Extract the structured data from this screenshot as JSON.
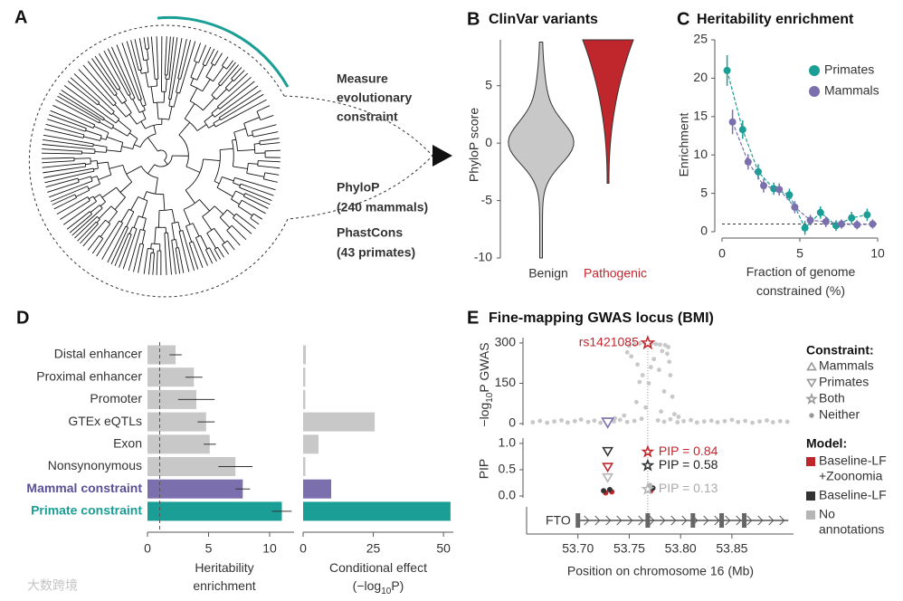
{
  "panel_a": {
    "letter": "A",
    "heading": [
      "Measure",
      "evolutionary",
      "constraint"
    ],
    "phylop": [
      "PhyloP",
      "(240 mammals)"
    ],
    "phastcons": [
      "PhastCons",
      "(43 primates)"
    ]
  },
  "watermark": "大数跨境",
  "chart_data": [
    {
      "panel": "B",
      "type": "violin",
      "title": "ClinVar variants",
      "ylabel": "PhyloP score",
      "categories": [
        "Benign",
        "Pathogenic"
      ],
      "colors": [
        "#c8c8c8",
        "#c0272d"
      ],
      "label_colors": [
        "#333333",
        "#c0272d"
      ],
      "min": [
        -10,
        -3.5
      ],
      "max": [
        8.8,
        9
      ],
      "ylim": [
        -10,
        9
      ],
      "yticks": [
        -10,
        -5,
        0,
        5
      ]
    },
    {
      "panel": "C",
      "type": "line",
      "title": "Heritability enrichment",
      "ylabel": "Enrichment",
      "xlabel": [
        [
          "Fraction of genome"
        ],
        [
          "constrained (%)"
        ]
      ],
      "x": [
        0.5,
        1.5,
        2.5,
        3.5,
        4.5,
        5.5,
        6.5,
        7.5,
        8.5,
        9.5
      ],
      "series": [
        {
          "name": "Primates",
          "color": "#1a9e95",
          "values": [
            21,
            13.3,
            7.8,
            5.6,
            4.8,
            0.5,
            2.5,
            0.8,
            1.8,
            2.2
          ],
          "errors": [
            2,
            1.2,
            1,
            0.8,
            0.8,
            0.9,
            0.8,
            0.7,
            0.8,
            0.8
          ]
        },
        {
          "name": "Mammals",
          "color": "#7b6fae",
          "values": [
            14.3,
            9.1,
            6.0,
            5.5,
            3.2,
            1.5,
            1.3,
            1.0,
            0.9,
            1.0
          ],
          "errors": [
            1.6,
            1,
            0.9,
            0.8,
            0.8,
            0.7,
            0.7,
            0.6,
            0.6,
            0.6
          ]
        }
      ],
      "xlim": [
        0,
        10
      ],
      "xticks": [
        0,
        5,
        10
      ],
      "ylim": [
        0,
        25
      ],
      "yticks": [
        0,
        5,
        10,
        15,
        20,
        25
      ],
      "reference": 1,
      "legend": "upper right"
    },
    {
      "panel": "D",
      "type": "hbar",
      "categories": [
        "Distal enhancer",
        "Proximal enhancer",
        "Promoter",
        "GTEx eQTLs",
        "Exon",
        "Nonsynonymous",
        "Mammal constraint",
        "Primate constraint"
      ],
      "colors": [
        "#c8c8c8",
        "#c8c8c8",
        "#c8c8c8",
        "#c8c8c8",
        "#c8c8c8",
        "#c8c8c8",
        "#7b6fae",
        "#1a9e95"
      ],
      "label_colors": [
        "#333333",
        "#333333",
        "#333333",
        "#333333",
        "#333333",
        "#333333",
        "#5b4f96",
        "#1a9e95"
      ],
      "values": [
        2.3,
        3.8,
        4.0,
        4.8,
        5.1,
        7.2,
        7.8,
        11.0
      ],
      "errors": [
        0.5,
        0.7,
        1.5,
        0.7,
        0.5,
        1.4,
        0.6,
        0.8
      ],
      "xlabel": [
        [
          "Heritability"
        ],
        [
          "enrichment"
        ]
      ],
      "xlim": [
        0,
        12
      ],
      "xticks": [
        0,
        5,
        10
      ],
      "reference": 1
    },
    {
      "type": "hbar",
      "values": [
        1,
        0.8,
        0.8,
        25.5,
        5.5,
        0.8,
        10,
        52.5
      ],
      "xlabel": [
        [
          "Conditional effect"
        ],
        [
          "(−log",
          "10",
          "P)"
        ]
      ],
      "xlim": [
        0,
        53.5
      ],
      "xticks": [
        0,
        25,
        50
      ]
    },
    {
      "panel": "E",
      "type": "gwas",
      "title": "Fine-mapping GWAS locus (BMI)",
      "xlabel": "Position on chromosome 16 (Mb)",
      "xlim": [
        53.65,
        53.91
      ],
      "xticks": [
        {
          "value": 53.7,
          "label": "53.70"
        },
        53.75,
        {
          "value": 53.8,
          "label": "53.80"
        },
        53.85
      ],
      "gwas": {
        "ylabel": [
          [
            "−log",
            "10",
            "P GWAS"
          ]
        ],
        "ylim": [
          0,
          320
        ],
        "yticks": [
          0,
          150,
          300
        ],
        "color": "#c8c8c8",
        "x": [
          53.656,
          53.663,
          53.67,
          53.677,
          53.684,
          53.69,
          53.697,
          53.703,
          53.71,
          53.716,
          53.722,
          53.735,
          53.741,
          53.748,
          53.755,
          53.762,
          53.778,
          53.784,
          53.79,
          53.797,
          53.803,
          53.81,
          53.816,
          53.823,
          53.83,
          53.836,
          53.843,
          53.85,
          53.856,
          53.863,
          53.87,
          53.877,
          53.884,
          53.89,
          53.897,
          53.904,
          53.75,
          53.755,
          53.76,
          53.765,
          53.772,
          53.776,
          53.78,
          53.785,
          53.788,
          53.752,
          53.758,
          53.763,
          53.769,
          53.774,
          53.779,
          53.784,
          53.787,
          53.79,
          53.792,
          53.757,
          53.766,
          53.781,
          53.745,
          53.794,
          53.736,
          53.798,
          53.76,
          53.771,
          53.782,
          53.789,
          53.748
        ],
        "values": [
          5,
          10,
          3,
          8,
          12,
          4,
          9,
          15,
          6,
          11,
          3,
          8,
          14,
          6,
          10,
          18,
          12,
          7,
          16,
          5,
          9,
          13,
          4,
          8,
          11,
          5,
          9,
          14,
          6,
          10,
          3,
          8,
          12,
          5,
          9,
          7,
          290,
          295,
          298,
          300,
          299,
          296,
          294,
          292,
          285,
          250,
          220,
          180,
          150,
          240,
          200,
          120,
          260,
          180,
          100,
          80,
          60,
          45,
          30,
          35,
          20,
          25,
          155,
          210,
          270,
          230,
          265
        ],
        "highlights": [
          {
            "x": 53.768,
            "value": 300,
            "shape": "star",
            "color": "#c0272d",
            "label": "rs1421085"
          },
          {
            "x": 53.729,
            "value": 4,
            "shape": "triangle-down",
            "color": "#7b6fae"
          }
        ]
      },
      "pip": {
        "ylabel": "PIP",
        "ylim": [
          0,
          1.05
        ],
        "yticks": [
          {
            "value": 0,
            "label": "0.0"
          },
          0.5,
          {
            "value": 1,
            "label": "1.0"
          }
        ],
        "series": [
          {
            "name": [
              "Baseline-LF",
              "+Zoonomia"
            ],
            "color": "#c0272d",
            "label_color": "#c0272d",
            "x": [
              53.729,
              53.768,
              53.727,
              53.733,
              53.771
            ],
            "values": [
              0.55,
              0.84,
              0.06,
              0.08,
              0.1
            ],
            "shapes": [
              "triangle-down",
              "star",
              "circle",
              "circle",
              "circle"
            ],
            "value_labels": [
              null,
              "PIP = 0.84",
              null,
              null,
              null
            ]
          },
          {
            "name": [
              "Baseline-LF"
            ],
            "color": "#333333",
            "label_color": "#222222",
            "x": [
              53.729,
              53.768,
              53.725,
              53.731,
              53.773
            ],
            "values": [
              0.85,
              0.58,
              0.1,
              0.12,
              0.15
            ],
            "shapes": [
              "triangle-down",
              "star",
              "circle",
              "circle",
              "circle"
            ],
            "value_labels": [
              null,
              "PIP = 0.58",
              null,
              null,
              null
            ]
          },
          {
            "name": [
              "No",
              "annotations"
            ],
            "color": "#b5b5b5",
            "label_color": "#aaaaaa",
            "x": [
              53.729,
              53.768,
              53.77
            ],
            "values": [
              0.35,
              0.13,
              0.2
            ],
            "shapes": [
              "triangle-down",
              "star",
              "circle"
            ],
            "value_labels": [
              null,
              "PIP = 0.13",
              null
            ]
          }
        ]
      },
      "gene": {
        "name": "FTO",
        "start": 53.7,
        "end": 53.905,
        "exons": [
          53.7,
          53.768,
          53.812,
          53.84,
          53.862
        ]
      },
      "constraint_legend": {
        "title": "Constraint:",
        "items": [
          {
            "name": "Mammals",
            "shape": "triangle-up"
          },
          {
            "name": "Primates",
            "shape": "triangle-down"
          },
          {
            "name": "Both",
            "shape": "star"
          },
          {
            "name": "Neither",
            "shape": "circle"
          }
        ]
      },
      "model_legend_title": "Model:"
    }
  ]
}
